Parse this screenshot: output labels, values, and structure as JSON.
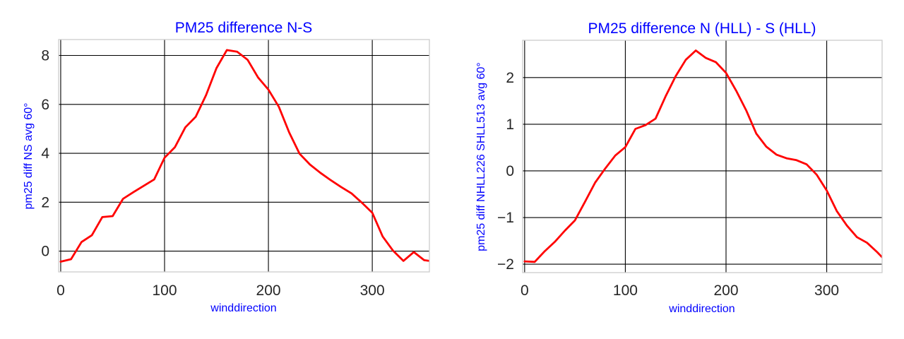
{
  "colors": {
    "series": "#ff0000",
    "label_text": "#0000ff",
    "tick_text": "#262626",
    "grid": "#000000",
    "frame": "#cccccc"
  },
  "chart_data": [
    {
      "type": "line",
      "title": "PM25 difference N-S",
      "xlabel": "winddirection",
      "ylabel": "pm25 diff NS avg 60°",
      "xlim": [
        -2,
        355
      ],
      "ylim": [
        -0.85,
        8.65
      ],
      "xticks": [
        0,
        100,
        200,
        300
      ],
      "yticks": [
        0,
        2,
        4,
        6,
        8
      ],
      "xtick_labels": [
        "0",
        "100",
        "200",
        "300"
      ],
      "ytick_labels": [
        "0",
        "2",
        "4",
        "6",
        "8"
      ],
      "grid": true,
      "series": [
        {
          "x": [
            0,
            10,
            20,
            30,
            40,
            50,
            60,
            70,
            80,
            90,
            100,
            110,
            120,
            130,
            140,
            150,
            160,
            170,
            180,
            190,
            200,
            210,
            220,
            230,
            240,
            250,
            260,
            270,
            280,
            290,
            300,
            310,
            320,
            330,
            340,
            350,
            355
          ],
          "y": [
            -0.43,
            -0.33,
            0.37,
            0.65,
            1.39,
            1.43,
            2.14,
            2.41,
            2.67,
            2.93,
            3.82,
            4.25,
            5.06,
            5.49,
            6.38,
            7.48,
            8.22,
            8.15,
            7.82,
            7.1,
            6.6,
            5.9,
            4.85,
            3.98,
            3.54,
            3.2,
            2.9,
            2.62,
            2.36,
            1.98,
            1.57,
            0.6,
            0.02,
            -0.4,
            -0.04,
            -0.37,
            -0.4
          ]
        }
      ]
    },
    {
      "type": "line",
      "title": "PM25 difference N (HLL) - S (HLL)",
      "xlabel": "winddirection",
      "ylabel": "pm25 diff NHLL226 SHLL513 avg 60°",
      "xlim": [
        -2,
        355
      ],
      "ylim": [
        -2.18,
        2.8
      ],
      "xticks": [
        0,
        100,
        200,
        300
      ],
      "yticks": [
        -2,
        -1,
        0,
        1,
        2
      ],
      "xtick_labels": [
        "0",
        "100",
        "200",
        "300"
      ],
      "ytick_labels": [
        "−2",
        "−1",
        "0",
        "1",
        "2"
      ],
      "grid": true,
      "series": [
        {
          "x": [
            0,
            10,
            20,
            30,
            40,
            50,
            60,
            70,
            80,
            90,
            100,
            110,
            120,
            130,
            140,
            150,
            160,
            170,
            180,
            190,
            200,
            210,
            220,
            230,
            240,
            250,
            260,
            270,
            280,
            290,
            300,
            310,
            320,
            330,
            340,
            350,
            355
          ],
          "y": [
            -1.94,
            -1.95,
            -1.72,
            -1.52,
            -1.28,
            -1.06,
            -0.66,
            -0.25,
            0.05,
            0.33,
            0.51,
            0.9,
            0.98,
            1.12,
            1.6,
            2.03,
            2.38,
            2.58,
            2.42,
            2.33,
            2.1,
            1.72,
            1.3,
            0.8,
            0.52,
            0.35,
            0.27,
            0.23,
            0.14,
            -0.08,
            -0.42,
            -0.86,
            -1.17,
            -1.42,
            -1.54,
            -1.74,
            -1.85
          ]
        }
      ]
    }
  ]
}
